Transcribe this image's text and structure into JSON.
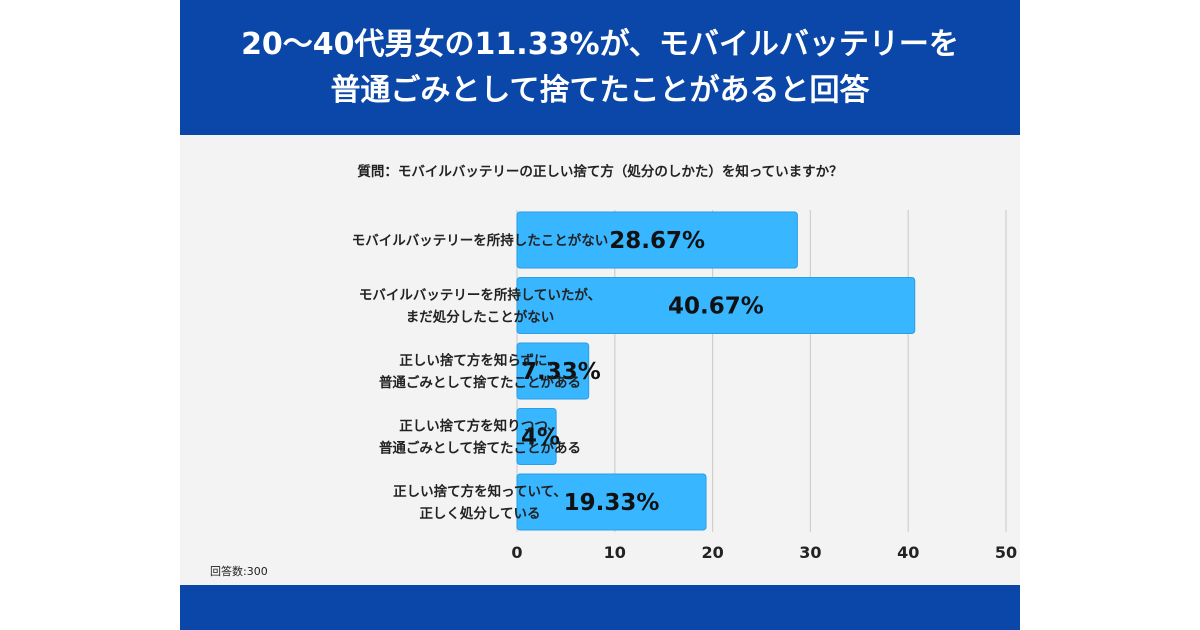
{
  "header": {
    "title_line1": "20〜40代男女の11.33%が、モバイルバッテリーを",
    "title_line2": "普通ごみとして捨てたことがあると回答"
  },
  "question": "質問：モバイルバッテリーの正しい捨て方（処分のしかた）を知っていますか？",
  "respondents": "回答数:300",
  "colors": {
    "header_bg": "#0a47a8",
    "bar": "#38b6ff",
    "bar_stroke": "#2a9fe6",
    "grid": "#cfcfcf",
    "card_bg": "#f3f3f3"
  },
  "chart_data": {
    "type": "bar",
    "orientation": "horizontal",
    "categories": [
      [
        "モバイルバッテリーを所持したことがない"
      ],
      [
        "モバイルバッテリーを所持していたが、",
        "まだ処分したことがない"
      ],
      [
        "正しい捨て方を知らずに、",
        "普通ごみとして捨てたことがある"
      ],
      [
        "正しい捨て方を知りつつ、",
        "普通ごみとして捨てたことがある"
      ],
      [
        "正しい捨て方を知っていて、",
        "正しく処分している"
      ]
    ],
    "values": [
      28.67,
      40.67,
      7.33,
      4,
      19.33
    ],
    "value_labels": [
      "28.67%",
      "40.67%",
      "7.33%",
      "4%",
      "19.33%"
    ],
    "xlim": [
      0,
      50
    ],
    "xticks": [
      0,
      10,
      20,
      30,
      40,
      50
    ],
    "grid": true,
    "legend": "none"
  }
}
